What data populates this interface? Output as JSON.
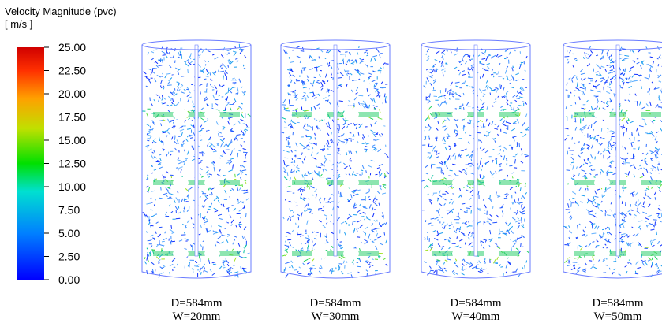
{
  "colorbar": {
    "title": "Velocity Magnitude (pvc)",
    "unit": "[ m/s ]",
    "ticks": [
      "25.00",
      "22.50",
      "20.00",
      "17.50",
      "15.00",
      "12.50",
      "10.00",
      "7.50",
      "5.00",
      "2.50",
      "0.00"
    ]
  },
  "panels": [
    {
      "d": "D=584mm",
      "w": "W=20mm"
    },
    {
      "d": "D=584mm",
      "w": "W=30mm"
    },
    {
      "d": "D=584mm",
      "w": "W=40mm"
    },
    {
      "d": "D=584mm",
      "w": "W=50mm"
    }
  ]
}
